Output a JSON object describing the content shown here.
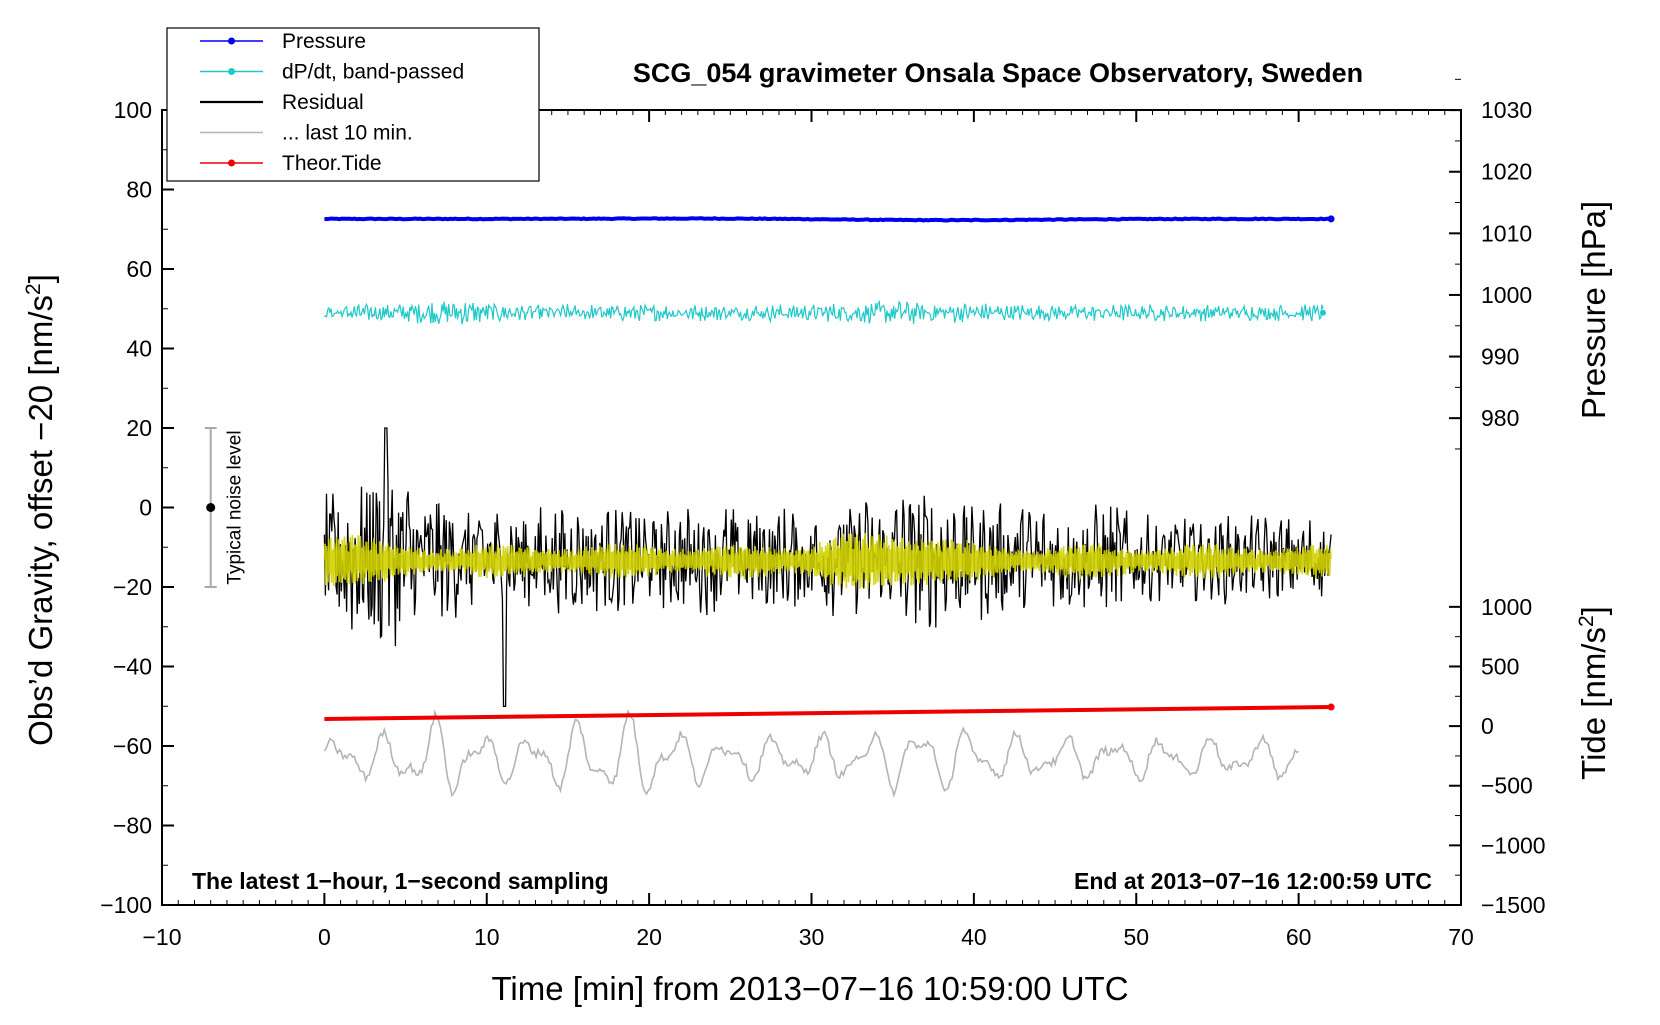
{
  "chart_data": {
    "type": "line",
    "title": "SCG_054 gravimeter Onsala Space Observatory, Sweden",
    "xlabel": "Time [min] from 2013−07−16 10:59:00 UTC",
    "ylabel_left_main": "Obs’d Gravity, offset −20 [nm/s",
    "ylabel_left_sup": "2",
    "ylabel_left_end": "]",
    "ylabel_right_pressure": "Pressure [hPa]",
    "ylabel_right_tide_main": "Tide [nm/s",
    "ylabel_right_tide_sup": "2",
    "ylabel_right_tide_end": "]",
    "xlim": [
      -10,
      70
    ],
    "ylim": [
      -100,
      100
    ],
    "x_ticks": [
      "−10",
      "0",
      "10",
      "20",
      "30",
      "40",
      "50",
      "60",
      "70"
    ],
    "x_tick_values": [
      -10,
      0,
      10,
      20,
      30,
      40,
      50,
      60,
      70
    ],
    "y_ticks": [
      "−100",
      "−80",
      "−60",
      "−40",
      "−20",
      "0",
      "20",
      "40",
      "60",
      "80",
      "100"
    ],
    "y_tick_values": [
      -100,
      -80,
      -60,
      -40,
      -20,
      0,
      20,
      40,
      60,
      80,
      100
    ],
    "pressure_ticks": [
      "980",
      "990",
      "1000",
      "1010",
      "1020",
      "1030"
    ],
    "pressure_tick_values": [
      980,
      990,
      1000,
      1010,
      1020,
      1030
    ],
    "pressure_axis_map": {
      "hpa_at_0": 965.5,
      "hpa_per_gravity_unit": 0.6452
    },
    "tide_ticks": [
      "−1500",
      "−1000",
      "−500",
      "0",
      "500",
      "1000"
    ],
    "tide_tick_values": [
      -1500,
      -1000,
      -500,
      0,
      500,
      1000
    ],
    "tide_axis_map": {
      "nms2_at_minus100": -1500,
      "nms2_per_gravity_unit": 33.33
    },
    "series": [
      {
        "name": "Pressure",
        "color": "#0000ee",
        "style": "line-dot",
        "x_range": [
          0,
          62
        ],
        "level": 72.6,
        "variation": 0.4
      },
      {
        "name": "dP/dt, band-passed",
        "color": "#20c8c8",
        "style": "line-dot",
        "x_range": [
          0,
          61.5
        ],
        "level": 49.0,
        "variation": 2.0
      },
      {
        "name": "Residual",
        "color": "#000000",
        "style": "line",
        "x_range": [
          0,
          62
        ],
        "level": -13,
        "variation": 14
      },
      {
        "name": "... last 10 min.",
        "color": "#b4b4b4",
        "style": "line",
        "x_range": [
          0,
          60
        ],
        "level": -63,
        "variation": 5
      },
      {
        "name": "Theor.Tide",
        "color": "#ee0000",
        "style": "line-dot",
        "x_range": [
          0,
          62
        ],
        "start": -53.2,
        "end": -50.2
      }
    ],
    "yellow_band": {
      "color": "#d0d000",
      "x_range": [
        0,
        62
      ],
      "level": -13.5,
      "variation": 4
    },
    "noise_bar": {
      "label": "Typical noise level",
      "x": -7,
      "center": 0,
      "low": -20,
      "high": 20
    },
    "annotations": {
      "bottom_left": "The latest 1−hour, 1−second sampling",
      "bottom_right": "End at 2013−07−16 12:00:59 UTC"
    },
    "legend_position": "top-left"
  }
}
